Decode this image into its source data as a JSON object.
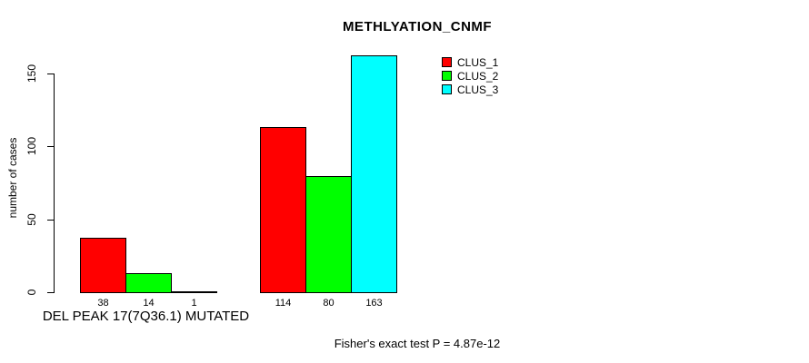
{
  "chart_data": {
    "type": "bar",
    "title": "METHLYATION_CNMF",
    "xlabel": "",
    "ylabel": "number of cases",
    "yticks": [
      0,
      50,
      100,
      150
    ],
    "ylim": [
      0,
      163
    ],
    "grid": false,
    "legend_position": "top-right",
    "series_names": [
      "CLUS_1",
      "CLUS_2",
      "CLUS_3"
    ],
    "colors": [
      "#ff0000",
      "#00ff00",
      "#00ffff"
    ],
    "groups": [
      {
        "label": "DEL PEAK 17(7Q36.1) MUTATED",
        "values": [
          38,
          14,
          1
        ]
      },
      {
        "label": "",
        "values": [
          114,
          80,
          163
        ]
      }
    ],
    "bar_value_labels": [
      [
        "38",
        "14",
        "1"
      ],
      [
        "114",
        "80",
        "163"
      ]
    ],
    "caption": "Fisher's exact test P = 4.87e-12"
  },
  "legend": {
    "items": [
      {
        "label": "CLUS_1",
        "color": "#ff0000"
      },
      {
        "label": "CLUS_2",
        "color": "#00ff00"
      },
      {
        "label": "CLUS_3",
        "color": "#00ffff"
      }
    ]
  }
}
